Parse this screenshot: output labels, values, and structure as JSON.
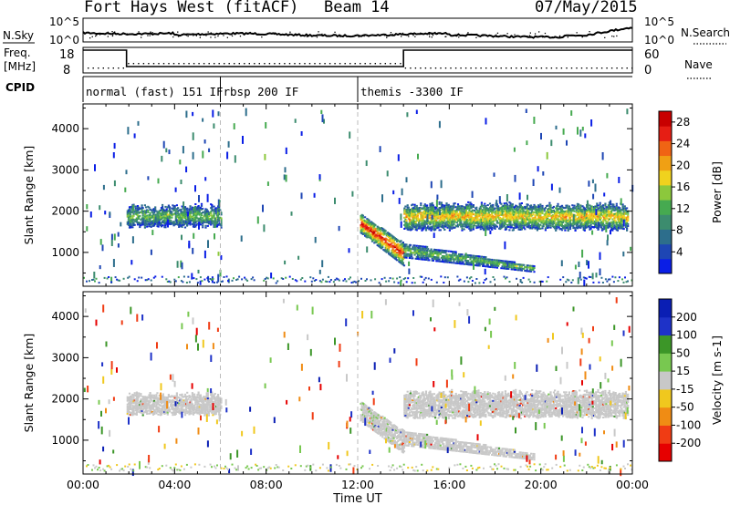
{
  "header": {
    "station": "Fort Hays West (fitACF)",
    "beam": "Beam 14",
    "date": "07/May/2015"
  },
  "panel_labels": {
    "nsky": "N.Sky",
    "freq_line1": "Freq.",
    "freq_line2": "[MHz]",
    "cpid": "CPID",
    "nsearch": "N.Search",
    "nave": "Nave"
  },
  "noise_axis": {
    "left_top": "10^5",
    "left_bottom": "10^0",
    "right_top": "10^5",
    "right_bottom": "10^0"
  },
  "freq_axis": {
    "left_top": "18",
    "left_bottom": "8",
    "right_top": "60",
    "right_bottom": "0"
  },
  "cpid_segments": [
    {
      "label": "normal (fast) 151 IF",
      "start_hour": 0,
      "end_hour": 6
    },
    {
      "label": "rbsp 200 IF",
      "start_hour": 6,
      "end_hour": 12
    },
    {
      "label": "themis -3300 IF",
      "start_hour": 12,
      "end_hour": 24
    }
  ],
  "colors": {
    "power_scale": [
      "#0a1ee6",
      "#1e46b4",
      "#2d6e8c",
      "#3c8c6e",
      "#46aa50",
      "#8cc83c",
      "#f0d21e",
      "#f0a014",
      "#f06414",
      "#e61e14",
      "#c80000"
    ],
    "velocity_scale": [
      "#e60000",
      "#f03c14",
      "#f08c14",
      "#f0c81e",
      "#c8c8c8",
      "#78c850",
      "#3c9628",
      "#1e32c8",
      "#0a1eb4"
    ]
  },
  "chart_data": [
    {
      "type": "heatmap",
      "title": "Power",
      "ylabel": "Slant Range [km]",
      "yticks": [
        "1000",
        "2000",
        "3000",
        "4000"
      ],
      "ylim": [
        180,
        4600
      ],
      "xlim": [
        0,
        24
      ],
      "colorbar": {
        "label": "Power [dB]",
        "ticks": [
          "4",
          "8",
          "12",
          "16",
          "20",
          "24",
          "28"
        ],
        "range": [
          0,
          30
        ]
      },
      "echo_regions": [
        {
          "start_hour": 1.9,
          "end_hour": 6.0,
          "range_km": [
            1620,
            2200
          ],
          "peak_db": 14
        },
        {
          "start_hour": 12.1,
          "end_hour": 14.0,
          "range_km": [
            700,
            1950
          ],
          "peak_db": 28
        },
        {
          "start_hour": 14.0,
          "end_hour": 23.8,
          "range_km": [
            1550,
            2250
          ],
          "peak_db": 20
        },
        {
          "start_hour": 14.0,
          "end_hour": 19.7,
          "range_km": [
            550,
            1200
          ],
          "peak_db": 14
        }
      ]
    },
    {
      "type": "heatmap",
      "title": "Velocity",
      "ylabel": "Slant Range [km]",
      "yticks": [
        "1000",
        "2000",
        "3000",
        "4000"
      ],
      "ylim": [
        180,
        4600
      ],
      "xlim": [
        0,
        24
      ],
      "colorbar": {
        "label": "Velocity [m s-1]",
        "ticks": [
          "-200",
          "-100",
          "-50",
          "-15",
          "15",
          "50",
          "100",
          "200"
        ],
        "range": [
          -250,
          250
        ]
      },
      "echo_regions": [
        {
          "start_hour": 1.9,
          "end_hour": 6.0,
          "range_km": [
            1620,
            2200
          ],
          "velocity": 0
        },
        {
          "start_hour": 12.1,
          "end_hour": 14.0,
          "range_km": [
            700,
            1950
          ],
          "velocity": 20
        },
        {
          "start_hour": 14.0,
          "end_hour": 23.8,
          "range_km": [
            1550,
            2250
          ],
          "velocity": 0
        },
        {
          "start_hour": 14.0,
          "end_hour": 19.7,
          "range_km": [
            550,
            1200
          ],
          "velocity": 0
        }
      ]
    }
  ],
  "x_axis": {
    "label": "Time UT",
    "ticks": [
      "00:00",
      "04:00",
      "08:00",
      "12:00",
      "16:00",
      "20:00",
      "00:00"
    ]
  }
}
